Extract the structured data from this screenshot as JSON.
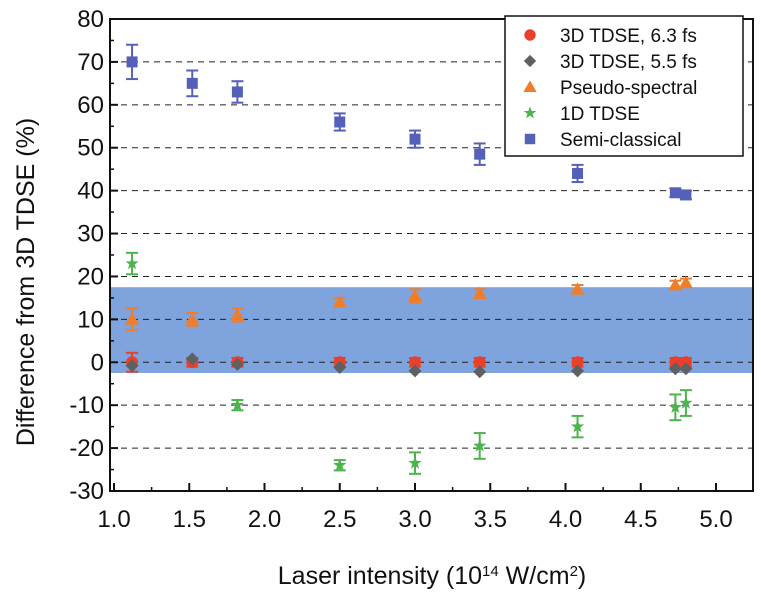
{
  "chart_data": {
    "type": "scatter",
    "title": "",
    "xlabel": {
      "main": "Laser intensity (10",
      "sup1": "14",
      "mid": " W/cm",
      "sup2": "2",
      "end": ")"
    },
    "ylabel": "Difference from 3D TDSE (%)",
    "xlim": [
      1.0,
      5.25
    ],
    "ylim": [
      -30,
      80
    ],
    "xticks": [
      1.0,
      1.5,
      2.0,
      2.5,
      3.0,
      3.5,
      4.0,
      4.5,
      5.0
    ],
    "xtick_labels": [
      "1.0",
      "1.5",
      "2.0",
      "2.5",
      "3.0",
      "3.5",
      "4.0",
      "4.5",
      "5.0"
    ],
    "yticks": [
      -30,
      -20,
      -10,
      0,
      10,
      20,
      30,
      40,
      50,
      60,
      70,
      80
    ],
    "ytick_labels": [
      "-30",
      "-20",
      "-10",
      "0",
      "10",
      "20",
      "30",
      "40",
      "50",
      "60",
      "70",
      "80"
    ],
    "grid": "horizontal dashed",
    "band": {
      "ymin": -2.5,
      "ymax": 17.5,
      "color": "#7fa3dc"
    },
    "legend_position": "top-right",
    "series": [
      {
        "name": "3D TDSE, 6.3 fs",
        "marker": "circle",
        "color": "#e8402a",
        "x": [
          1.12,
          1.52,
          1.82,
          2.5,
          3.0,
          3.43,
          4.08,
          4.73,
          4.8
        ],
        "y": [
          0,
          0,
          0,
          0,
          0,
          0,
          0,
          0,
          0
        ],
        "err": [
          2.2,
          1.0,
          1.0,
          1.0,
          1.0,
          1.0,
          1.0,
          1.0,
          1.0
        ]
      },
      {
        "name": "3D TDSE, 5.5 fs",
        "marker": "diamond",
        "color": "#606060",
        "x": [
          1.12,
          1.52,
          1.82,
          2.5,
          3.0,
          3.43,
          4.08,
          4.73,
          4.8
        ],
        "y": [
          -0.8,
          0.8,
          -0.5,
          -1.2,
          -2.0,
          -2.2,
          -2.0,
          -1.5,
          -1.5
        ],
        "err": [
          0,
          0,
          0,
          0,
          0,
          0,
          0,
          0,
          0
        ]
      },
      {
        "name": "Pseudo-spectral",
        "marker": "triangle",
        "color": "#f07d2a",
        "x": [
          1.12,
          1.52,
          1.82,
          2.5,
          3.0,
          3.43,
          4.08,
          4.73,
          4.8
        ],
        "y": [
          10,
          10,
          11,
          14,
          15.5,
          16,
          17,
          18,
          18.5
        ],
        "err": [
          2.5,
          1.5,
          1.5,
          1.0,
          1.5,
          1.0,
          1.0,
          1.0,
          1.0
        ]
      },
      {
        "name": "1D TDSE",
        "marker": "star",
        "color": "#4db34d",
        "x": [
          1.12,
          1.82,
          2.5,
          3.0,
          3.43,
          4.08,
          4.73,
          4.8
        ],
        "y": [
          23,
          -10,
          -24,
          -23.5,
          -19.5,
          -15,
          -10.5,
          -9.5
        ],
        "err": [
          2.5,
          1.2,
          1.2,
          2.5,
          3.0,
          2.5,
          3.0,
          3.0
        ]
      },
      {
        "name": "Semi-classical",
        "marker": "square",
        "color": "#5560b8",
        "x": [
          1.12,
          1.52,
          1.82,
          2.5,
          3.0,
          3.43,
          4.08,
          4.73,
          4.8
        ],
        "y": [
          70,
          65,
          63,
          56,
          52,
          48.5,
          44,
          39.5,
          39
        ],
        "err": [
          4.0,
          3.0,
          2.5,
          2.0,
          2.0,
          2.5,
          2.0,
          1.0,
          1.0
        ]
      }
    ]
  }
}
